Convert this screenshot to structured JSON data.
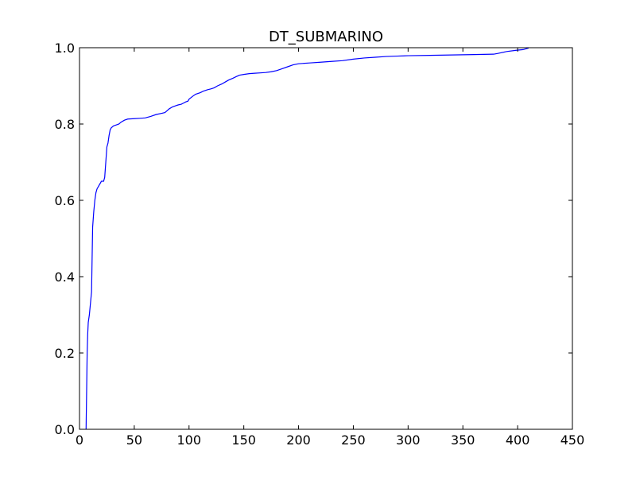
{
  "chart_data": {
    "type": "line",
    "title": "DT_SUBMARINO",
    "xlabel": "",
    "ylabel": "",
    "xlim": [
      0,
      450
    ],
    "ylim": [
      0.0,
      1.0
    ],
    "xticks": [
      0,
      50,
      100,
      150,
      200,
      250,
      300,
      350,
      400,
      450
    ],
    "yticks": [
      0.0,
      0.2,
      0.4,
      0.6,
      0.8,
      1.0
    ],
    "xtick_labels": [
      "0",
      "50",
      "100",
      "150",
      "200",
      "250",
      "300",
      "350",
      "400",
      "450"
    ],
    "ytick_labels": [
      "0.0",
      "0.2",
      "0.4",
      "0.6",
      "0.8",
      "1.0"
    ],
    "grid": false,
    "line_color": "#0000ff",
    "series": [
      {
        "x": [
          6,
          6.5,
          7,
          7.5,
          8,
          9,
          10,
          11,
          12,
          12.5,
          13,
          14,
          15,
          16,
          18,
          20,
          22,
          23,
          24,
          24.5,
          25,
          26,
          27,
          28,
          29,
          31,
          33,
          36,
          38,
          41,
          44,
          50,
          55,
          60,
          65,
          70,
          75,
          78,
          80,
          82,
          85,
          88,
          90,
          93,
          95,
          97,
          99,
          100,
          103,
          106,
          110,
          113,
          117,
          120,
          123,
          126,
          130,
          133,
          136,
          140,
          143,
          146,
          150,
          155,
          160,
          165,
          170,
          175,
          180,
          185,
          190,
          195,
          200,
          210,
          220,
          230,
          240,
          250,
          260,
          270,
          280,
          290,
          300,
          320,
          340,
          360,
          378,
          382,
          390,
          398,
          405,
          410
        ],
        "y": [
          0.0,
          0.1,
          0.2,
          0.25,
          0.28,
          0.3,
          0.33,
          0.36,
          0.53,
          0.55,
          0.57,
          0.6,
          0.62,
          0.63,
          0.64,
          0.65,
          0.65,
          0.66,
          0.7,
          0.72,
          0.74,
          0.75,
          0.77,
          0.785,
          0.79,
          0.795,
          0.797,
          0.8,
          0.805,
          0.81,
          0.813,
          0.814,
          0.815,
          0.816,
          0.82,
          0.825,
          0.828,
          0.83,
          0.835,
          0.84,
          0.845,
          0.848,
          0.85,
          0.852,
          0.855,
          0.858,
          0.86,
          0.865,
          0.872,
          0.878,
          0.882,
          0.886,
          0.89,
          0.892,
          0.895,
          0.9,
          0.905,
          0.91,
          0.915,
          0.92,
          0.924,
          0.928,
          0.93,
          0.932,
          0.933,
          0.934,
          0.935,
          0.937,
          0.94,
          0.945,
          0.95,
          0.955,
          0.958,
          0.96,
          0.962,
          0.964,
          0.966,
          0.97,
          0.973,
          0.975,
          0.977,
          0.978,
          0.979,
          0.98,
          0.981,
          0.982,
          0.983,
          0.985,
          0.99,
          0.993,
          0.995,
          0.999
        ]
      }
    ]
  }
}
